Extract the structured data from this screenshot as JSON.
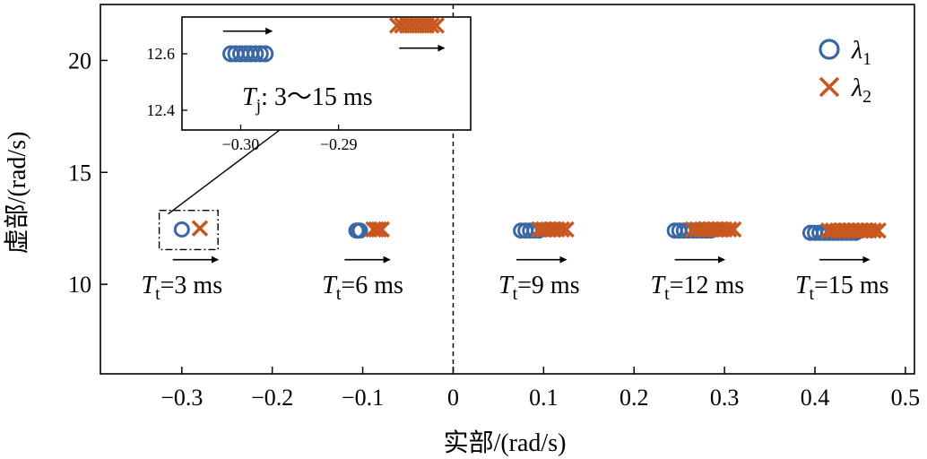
{
  "chart_data": {
    "type": "scatter",
    "xlabel": "实部/(rad/s)",
    "ylabel": "虚部/(rad/s)",
    "xlim": [
      -0.39,
      0.51
    ],
    "ylim": [
      6,
      22.5
    ],
    "xticks": [
      -0.3,
      -0.2,
      -0.1,
      0,
      0.1,
      0.2,
      0.3,
      0.4,
      0.5
    ],
    "xtick_labels": [
      "−0.3",
      "−0.2",
      "−0.1",
      "0",
      "0.1",
      "0.2",
      "0.3",
      "0.4",
      "0.5"
    ],
    "yticks": [
      10,
      15,
      20
    ],
    "ytick_labels": [
      "10",
      "15",
      "20"
    ],
    "legend": {
      "placement": "top-right",
      "entries": [
        {
          "symbol": "λ",
          "subscript": "1",
          "marker": "circle",
          "color": "#3a68a4"
        },
        {
          "symbol": "λ",
          "subscript": "2",
          "marker": "x",
          "color": "#c8561f"
        }
      ]
    },
    "series": [
      {
        "name": "λ1",
        "marker": "circle",
        "color": "#3a68a4",
        "groups": [
          {
            "x": [
              -0.3
            ],
            "y": [
              12.45
            ]
          },
          {
            "x": [
              -0.107,
              -0.105,
              -0.103
            ],
            "y": [
              12.4,
              12.4,
              12.4
            ]
          },
          {
            "x": [
              0.075,
              0.08,
              0.085,
              0.09,
              0.095
            ],
            "y": [
              12.4,
              12.4,
              12.4,
              12.4,
              12.4
            ]
          },
          {
            "x": [
              0.245,
              0.25,
              0.255,
              0.26,
              0.265,
              0.27,
              0.275,
              0.28,
              0.285
            ],
            "y": [
              12.4,
              12.4,
              12.4,
              12.4,
              12.4,
              12.4,
              12.4,
              12.4,
              12.4
            ]
          },
          {
            "x": [
              0.395,
              0.4,
              0.405,
              0.41,
              0.415,
              0.42,
              0.425,
              0.43,
              0.435,
              0.44,
              0.445
            ],
            "y": [
              12.3,
              12.3,
              12.3,
              12.3,
              12.3,
              12.3,
              12.3,
              12.3,
              12.3,
              12.3,
              12.3
            ]
          }
        ]
      },
      {
        "name": "λ2",
        "marker": "x",
        "color": "#c8561f",
        "groups": [
          {
            "x": [
              -0.28
            ],
            "y": [
              12.5
            ]
          },
          {
            "x": [
              -0.088,
              -0.085,
              -0.082,
              -0.079
            ],
            "y": [
              12.45,
              12.45,
              12.45,
              12.45
            ]
          },
          {
            "x": [
              0.095,
              0.1,
              0.105,
              0.11,
              0.115,
              0.12,
              0.125
            ],
            "y": [
              12.45,
              12.45,
              12.45,
              12.45,
              12.45,
              12.45,
              12.45
            ]
          },
          {
            "x": [
              0.265,
              0.27,
              0.275,
              0.28,
              0.285,
              0.29,
              0.295,
              0.3,
              0.305,
              0.31
            ],
            "y": [
              12.45,
              12.45,
              12.45,
              12.45,
              12.45,
              12.45,
              12.45,
              12.45,
              12.45,
              12.45
            ]
          },
          {
            "x": [
              0.415,
              0.42,
              0.425,
              0.43,
              0.435,
              0.44,
              0.445,
              0.45,
              0.455,
              0.46,
              0.465,
              0.47
            ],
            "y": [
              12.4,
              12.4,
              12.4,
              12.4,
              12.4,
              12.4,
              12.4,
              12.4,
              12.4,
              12.4,
              12.4,
              12.4
            ]
          }
        ]
      }
    ],
    "reference_lines": [
      {
        "axis": "x",
        "value": 0,
        "style": "dashed"
      }
    ],
    "annotations": [
      {
        "label_italic": "T",
        "label_sub": "t",
        "text": "=3 ms",
        "x": -0.3,
        "y": 9.6,
        "arrow_x": [
          -0.31,
          -0.26
        ],
        "arrow_y": 11.1
      },
      {
        "label_italic": "T",
        "label_sub": "t",
        "text": "=6 ms",
        "x": -0.1,
        "y": 9.6,
        "arrow_x": [
          -0.12,
          -0.07
        ],
        "arrow_y": 11.1
      },
      {
        "label_italic": "T",
        "label_sub": "t",
        "text": "=9 ms",
        "x": 0.095,
        "y": 9.6,
        "arrow_x": [
          0.07,
          0.125
        ],
        "arrow_y": 11.1
      },
      {
        "label_italic": "T",
        "label_sub": "t",
        "text": "=12 ms",
        "x": 0.27,
        "y": 9.6,
        "arrow_x": [
          0.245,
          0.3
        ],
        "arrow_y": 11.1
      },
      {
        "label_italic": "T",
        "label_sub": "t",
        "text": "=15 ms",
        "x": 0.43,
        "y": 9.6,
        "arrow_x": [
          0.405,
          0.46
        ],
        "arrow_y": 11.1
      }
    ],
    "zoom_region": {
      "x": [
        -0.325,
        -0.26
      ],
      "y": [
        11.55,
        13.3
      ]
    },
    "inset": {
      "xlim": [
        -0.306,
        -0.2765
      ],
      "ylim": [
        12.33,
        12.73
      ],
      "xticks": [
        -0.3,
        -0.29
      ],
      "xtick_labels": [
        "−0.30",
        "−0.29"
      ],
      "yticks": [
        12.4,
        12.6
      ],
      "ytick_labels": [
        "12.4",
        "12.6"
      ],
      "label_italic": "T",
      "label_sub": "j",
      "label_text": ": 3～15 ms",
      "series": [
        {
          "marker": "circle",
          "color": "#3a68a4",
          "x": [
            -0.301,
            -0.3005,
            -0.3,
            -0.2995,
            -0.299,
            -0.2985,
            -0.298,
            -0.2975
          ],
          "y": [
            12.6,
            12.6,
            12.6,
            12.6,
            12.6,
            12.6,
            12.6,
            12.6
          ]
        },
        {
          "marker": "x",
          "color": "#c8561f",
          "x": [
            -0.284,
            -0.2835,
            -0.283,
            -0.2825,
            -0.282,
            -0.2815,
            -0.281,
            -0.2805,
            -0.28
          ],
          "y": [
            12.7,
            12.7,
            12.7,
            12.7,
            12.7,
            12.7,
            12.7,
            12.7,
            12.7
          ]
        }
      ],
      "arrows": [
        {
          "x": [
            -0.3018,
            -0.2968
          ],
          "y": 12.68
        },
        {
          "x": [
            -0.2838,
            -0.2792
          ],
          "y": 12.62
        }
      ]
    }
  }
}
